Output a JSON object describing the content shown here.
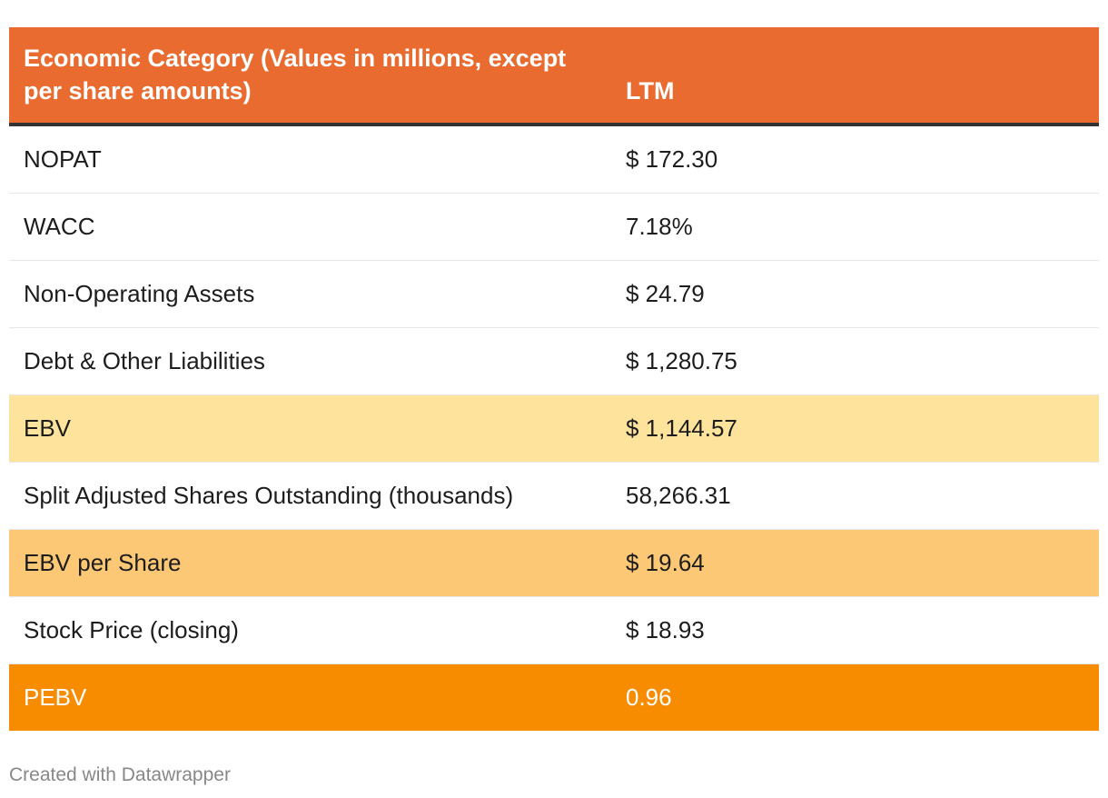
{
  "table": {
    "header": {
      "category": "Economic Category (Values in millions, except per share amounts)",
      "ltm": "LTM"
    },
    "rows": [
      {
        "label": "NOPAT",
        "value": "$ 172.30",
        "highlight": "none"
      },
      {
        "label": "WACC",
        "value": "7.18%",
        "highlight": "none"
      },
      {
        "label": "Non-Operating Assets",
        "value": "$ 24.79",
        "highlight": "none"
      },
      {
        "label": "Debt & Other Liabilities",
        "value": "$ 1,280.75",
        "highlight": "none"
      },
      {
        "label": "EBV",
        "value": "$ 1,144.57",
        "highlight": "light"
      },
      {
        "label": "Split Adjusted Shares Outstanding (thousands)",
        "value": "58,266.31",
        "highlight": "none"
      },
      {
        "label": "EBV per Share",
        "value": "$ 19.64",
        "highlight": "medium"
      },
      {
        "label": "Stock Price (closing)",
        "value": "$ 18.93",
        "highlight": "none"
      },
      {
        "label": "PEBV",
        "value": "0.96",
        "highlight": "strong"
      }
    ]
  },
  "footer": {
    "credit": "Created with Datawrapper"
  },
  "colors": {
    "header_bg": "#e96b2f",
    "highlight_light": "#fee39c",
    "highlight_medium": "#fdc875",
    "highlight_strong": "#f78c01"
  }
}
